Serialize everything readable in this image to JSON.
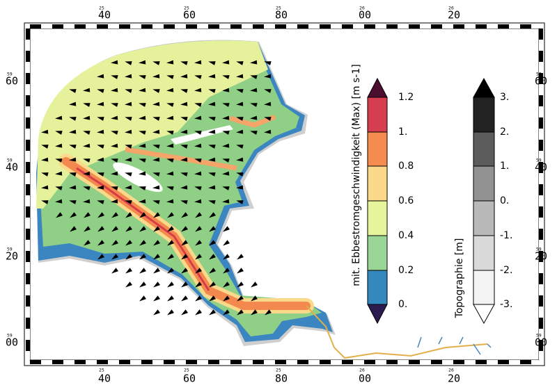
{
  "frame": {
    "top_labels": [
      {
        "major": "40",
        "minor": "25"
      },
      {
        "major": "60",
        "minor": "25"
      },
      {
        "major": "80",
        "minor": "25"
      },
      {
        "major": "00",
        "minor": "26"
      },
      {
        "major": "20",
        "minor": "26"
      }
    ],
    "bottom_labels": [
      {
        "major": "40",
        "minor": "25"
      },
      {
        "major": "60",
        "minor": "25"
      },
      {
        "major": "80",
        "minor": "25"
      },
      {
        "major": "00",
        "minor": "26"
      },
      {
        "major": "20",
        "minor": "26"
      }
    ],
    "left_labels": [
      {
        "major": "60",
        "minor": "59"
      },
      {
        "major": "40",
        "minor": "59"
      },
      {
        "major": "20",
        "minor": "59"
      },
      {
        "major": "00",
        "minor": "59"
      }
    ],
    "right_labels": [
      {
        "major": "60",
        "minor": "59"
      },
      {
        "major": "40",
        "minor": "59"
      },
      {
        "major": "20",
        "minor": "59"
      },
      {
        "major": "00",
        "minor": "59"
      }
    ]
  },
  "colorbar_speed": {
    "title": "mit. Ebbestromgeschwindigkeit (Max) [m s-1]",
    "labels": [
      "1.2",
      "1.",
      "0.8",
      "0.6",
      "0.4",
      "0.2",
      "0."
    ]
  },
  "colorbar_topography": {
    "title": "Topographie [m]",
    "labels": [
      "3.",
      "2.",
      "1.",
      "0.",
      "-1.",
      "-2.",
      "-3."
    ]
  }
}
